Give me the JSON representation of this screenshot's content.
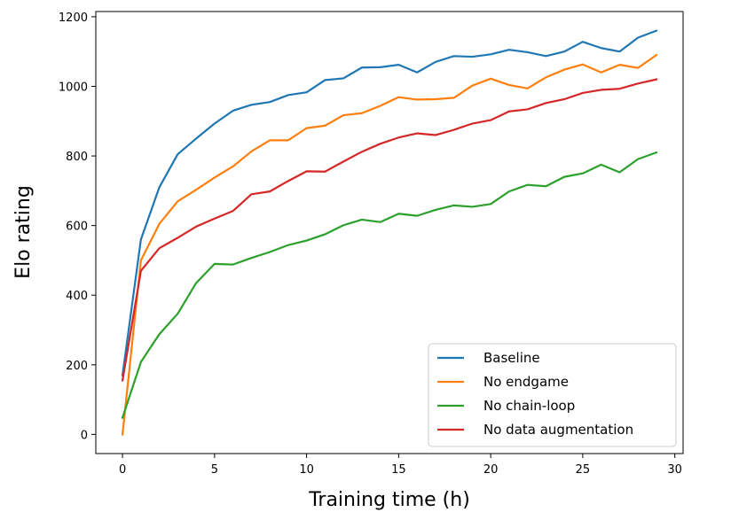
{
  "chart_data": {
    "type": "line",
    "title": "",
    "xlabel": "Training time (h)",
    "ylabel": "Elo rating",
    "xlim": [
      -1.45,
      30.45
    ],
    "ylim": [
      -55,
      1215
    ],
    "xticks": [
      0,
      5,
      10,
      15,
      20,
      25,
      30
    ],
    "yticks": [
      0,
      200,
      400,
      600,
      800,
      1000,
      1200
    ],
    "grid": false,
    "legend_position": "lower-right",
    "x": [
      0,
      1,
      2,
      3,
      4,
      5,
      6,
      7,
      8,
      9,
      10,
      11,
      12,
      13,
      14,
      15,
      16,
      17,
      18,
      19,
      20,
      21,
      22,
      23,
      24,
      25,
      26,
      27,
      28,
      29
    ],
    "series": [
      {
        "name": "Baseline",
        "color": "#1f77b4",
        "values": [
          170,
          560,
          710,
          805,
          850,
          893,
          930,
          947,
          955,
          975,
          983,
          1018,
          1023,
          1054,
          1055,
          1062,
          1040,
          1070,
          1087,
          1085,
          1092,
          1105,
          1098,
          1087,
          1100,
          1128,
          1110,
          1100,
          1140,
          1160
        ]
      },
      {
        "name": "No endgame",
        "color": "#ff7f0e",
        "values": [
          0,
          500,
          605,
          670,
          703,
          738,
          770,
          813,
          845,
          845,
          880,
          887,
          917,
          923,
          944,
          969,
          962,
          963,
          967,
          1002,
          1022,
          1004,
          994,
          1026,
          1048,
          1063,
          1040,
          1062,
          1053,
          1090
        ]
      },
      {
        "name": "No chain-loop",
        "color": "#2ca02c",
        "values": [
          48,
          208,
          288,
          347,
          435,
          490,
          488,
          507,
          524,
          544,
          557,
          575,
          601,
          617,
          610,
          634,
          628,
          645,
          658,
          654,
          662,
          698,
          717,
          713,
          740,
          750,
          775,
          753,
          791,
          810
        ]
      },
      {
        "name": "No data augmentation",
        "color": "#d62728",
        "values": [
          155,
          470,
          535,
          565,
          597,
          620,
          642,
          690,
          698,
          728,
          756,
          755,
          784,
          812,
          835,
          853,
          865,
          860,
          875,
          893,
          903,
          928,
          934,
          952,
          963,
          981,
          990,
          993,
          1008,
          1020
        ]
      }
    ]
  }
}
